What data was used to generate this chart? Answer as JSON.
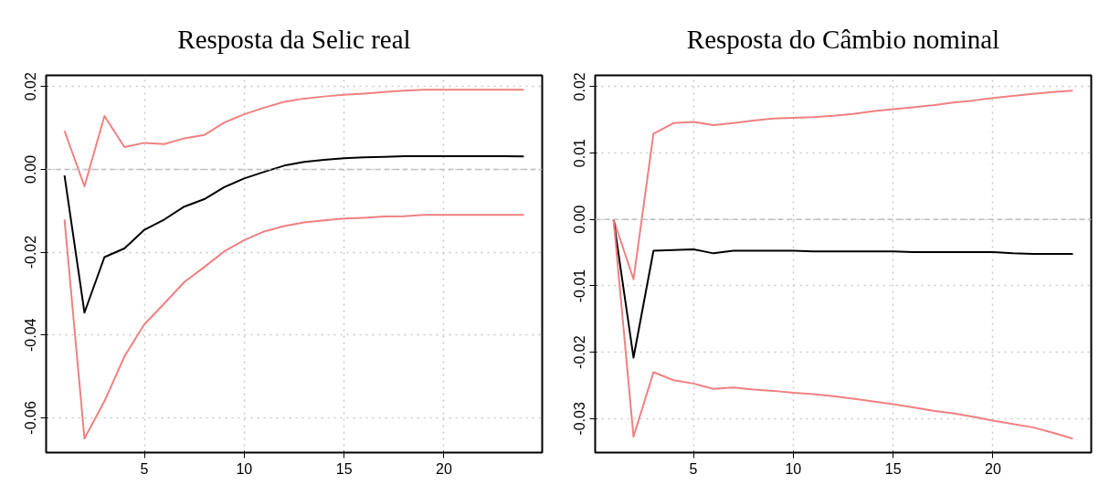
{
  "chart_data": [
    {
      "type": "line",
      "title": "Resposta da Selic real",
      "x": [
        1,
        2,
        3,
        4,
        5,
        6,
        7,
        8,
        9,
        10,
        11,
        12,
        13,
        14,
        15,
        16,
        17,
        18,
        19,
        20,
        21,
        22,
        23,
        24
      ],
      "series": [
        {
          "color": "#f08080",
          "values": [
            0.0093,
            -0.0041,
            0.0129,
            0.0054,
            0.0064,
            0.0061,
            0.0075,
            0.0083,
            0.0113,
            0.0133,
            0.0149,
            0.0163,
            0.0171,
            0.0176,
            0.018,
            0.0183,
            0.0187,
            0.019,
            0.0192,
            0.0192,
            0.0192,
            0.0192,
            0.0192,
            0.0192
          ]
        },
        {
          "color": "#000000",
          "values": [
            -0.0015,
            -0.0346,
            -0.0212,
            -0.0191,
            -0.0146,
            -0.0121,
            -0.009,
            -0.0072,
            -0.0043,
            -0.0022,
            -0.0006,
            0.0009,
            0.0018,
            0.0023,
            0.0027,
            0.0029,
            0.003,
            0.0032,
            0.0032,
            0.0032,
            0.0032,
            0.0032,
            0.0032,
            0.0031
          ]
        },
        {
          "color": "#f08080",
          "values": [
            -0.0121,
            -0.065,
            -0.056,
            -0.0452,
            -0.0374,
            -0.0324,
            -0.0272,
            -0.0236,
            -0.0198,
            -0.0171,
            -0.015,
            -0.0137,
            -0.0128,
            -0.0123,
            -0.0119,
            -0.0117,
            -0.0114,
            -0.0113,
            -0.011,
            -0.011,
            -0.011,
            -0.011,
            -0.011,
            -0.011
          ]
        }
      ],
      "xlim": [
        0.08,
        24.92
      ],
      "ylim": [
        -0.0684,
        0.0227
      ],
      "xticks": [
        5,
        10,
        15,
        20
      ],
      "yticks": [
        {
          "value": -0.06,
          "label": "-0.06"
        },
        {
          "value": -0.04,
          "label": "-0.04"
        },
        {
          "value": -0.02,
          "label": "-0.02"
        },
        {
          "value": 0,
          "label": "0.00"
        },
        {
          "value": 0.02,
          "label": "0.02"
        }
      ],
      "grid": true,
      "ref_lines": [
        {
          "axis": "y",
          "value": 0,
          "color": "#bebebe",
          "line_style": "dashed"
        }
      ]
    },
    {
      "type": "line",
      "title": "Resposta do Câmbio nominal",
      "x": [
        1,
        2,
        3,
        4,
        5,
        6,
        7,
        8,
        9,
        10,
        11,
        12,
        13,
        14,
        15,
        16,
        17,
        18,
        19,
        20,
        21,
        22,
        23,
        24
      ],
      "series": [
        {
          "color": "#f08080",
          "values": [
            0,
            -0.009,
            0.0129,
            0.0145,
            0.0147,
            0.0142,
            0.0145,
            0.0149,
            0.0152,
            0.0153,
            0.0154,
            0.0156,
            0.0159,
            0.0163,
            0.0166,
            0.0169,
            0.0172,
            0.0176,
            0.0179,
            0.0183,
            0.0186,
            0.0189,
            0.0192,
            0.0194
          ]
        },
        {
          "color": "#000000",
          "values": [
            0,
            -0.0208,
            -0.0047,
            -0.0046,
            -0.0045,
            -0.0051,
            -0.0047,
            -0.0047,
            -0.0047,
            -0.0047,
            -0.0048,
            -0.0048,
            -0.0048,
            -0.0048,
            -0.0048,
            -0.0049,
            -0.0049,
            -0.0049,
            -0.0049,
            -0.0049,
            -0.0051,
            -0.0052,
            -0.0052,
            -0.0052
          ]
        },
        {
          "color": "#f08080",
          "values": [
            0,
            -0.0327,
            -0.023,
            -0.0242,
            -0.0247,
            -0.0255,
            -0.0253,
            -0.0256,
            -0.0258,
            -0.0261,
            -0.0263,
            -0.0266,
            -0.027,
            -0.0274,
            -0.0278,
            -0.0283,
            -0.0288,
            -0.0292,
            -0.0297,
            -0.0303,
            -0.0308,
            -0.0313,
            -0.0321,
            -0.033
          ]
        }
      ],
      "xlim": [
        0.08,
        24.92
      ],
      "ylim": [
        -0.0351,
        0.0217
      ],
      "xticks": [
        5,
        10,
        15,
        20
      ],
      "yticks": [
        {
          "value": -0.03,
          "label": "-0.03"
        },
        {
          "value": -0.02,
          "label": "-0.02"
        },
        {
          "value": -0.01,
          "label": "-0.01"
        },
        {
          "value": 0,
          "label": "0.00"
        },
        {
          "value": 0.01,
          "label": "0.01"
        },
        {
          "value": 0.02,
          "label": "0.02"
        }
      ],
      "grid": true,
      "ref_lines": [
        {
          "axis": "y",
          "value": 0,
          "color": "#bebebe",
          "line_style": "dashed"
        }
      ]
    }
  ]
}
